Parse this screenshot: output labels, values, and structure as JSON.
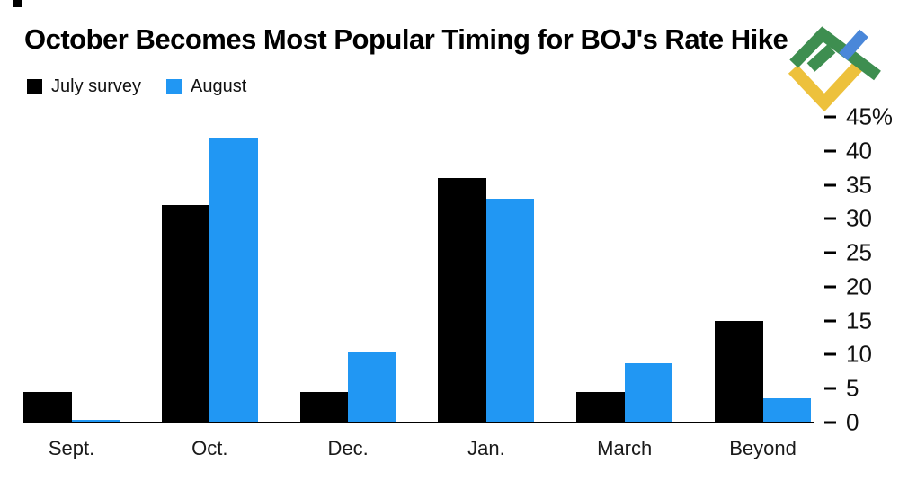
{
  "title": "October Becomes Most Popular Timing for BOJ's Rate Hike",
  "legend": [
    {
      "label": "July survey",
      "color": "#000000"
    },
    {
      "label": "August",
      "color": "#2197f3"
    }
  ],
  "chart_data": {
    "type": "bar",
    "title": "October Becomes Most Popular Timing for BOJ's Rate Hike",
    "categories": [
      "Sept.",
      "Oct.",
      "Dec.",
      "Jan.",
      "March",
      "Beyond"
    ],
    "series": [
      {
        "name": "July survey",
        "color": "#000000",
        "values": [
          4.5,
          32,
          4.5,
          36,
          4.5,
          15
        ]
      },
      {
        "name": "August",
        "color": "#2197f3",
        "values": [
          0.4,
          42,
          10.5,
          33,
          8.7,
          3.6
        ]
      }
    ],
    "xlabel": "",
    "ylabel": "",
    "y_ticks": [
      0,
      5,
      10,
      15,
      20,
      25,
      30,
      35,
      40,
      45
    ],
    "y_tick_top_suffix": "%",
    "ylim": [
      0,
      45
    ],
    "axis_side": "right",
    "grid": false,
    "legend_position": "top-left"
  },
  "logo": {
    "name": "LiteFinance logo",
    "green": "#3e8e50",
    "blue": "#4a87d9",
    "yellow": "#edc13c"
  }
}
